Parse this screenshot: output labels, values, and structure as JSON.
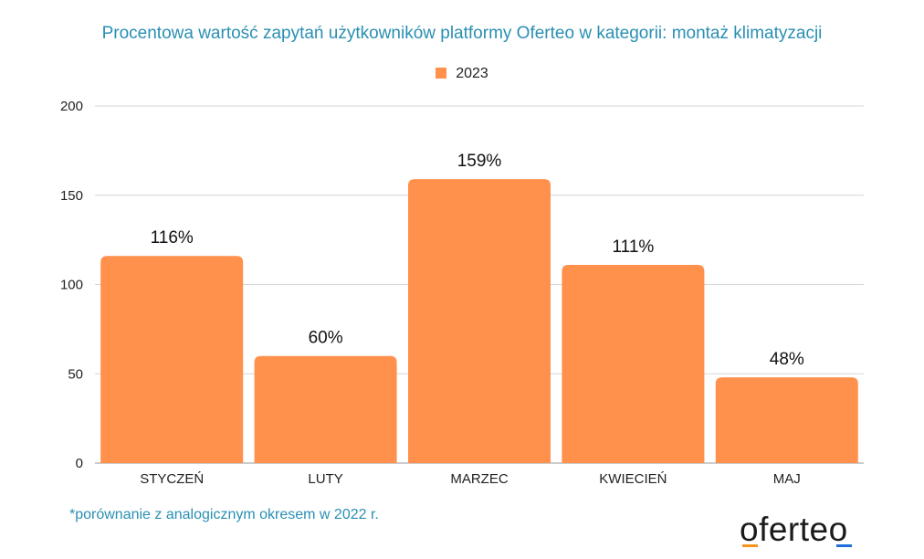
{
  "chart_data": {
    "type": "bar",
    "title": "Procentowa wartość zapytań użytkowników platformy Oferteo w kategorii: montaż klimatyzacji",
    "categories": [
      "STYCZEŃ",
      "LUTY",
      "MARZEC",
      "KWIECIEŃ",
      "MAJ"
    ],
    "series": [
      {
        "name": "2023",
        "values": [
          116,
          60,
          159,
          111,
          48
        ],
        "color": "#ff914d"
      }
    ],
    "data_labels": [
      "116%",
      "60%",
      "159%",
      "111%",
      "48%"
    ],
    "y_ticks": [
      0,
      50,
      100,
      150,
      200
    ],
    "ylim": [
      0,
      200
    ],
    "grid": true,
    "legend_position": "top-center"
  },
  "footnote": "*porównanie z analogicznym okresem w 2022 r.",
  "logo": {
    "text": "oferteo",
    "accent_orange": "#f7941d",
    "accent_blue": "#1e6fd9"
  }
}
